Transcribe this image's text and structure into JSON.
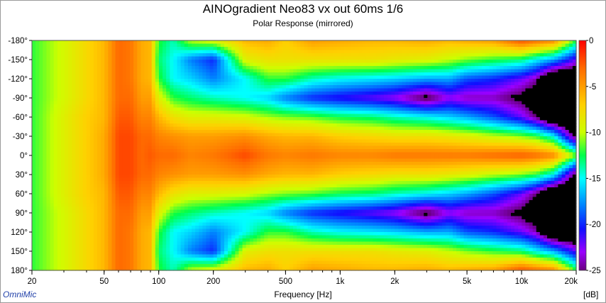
{
  "window": {
    "brand": "OmniMic"
  },
  "chart_data": {
    "type": "heatmap",
    "title": "AINOgradient Neo83 vx out 60ms 1/6",
    "subtitle": "Polar Response (mirrored)",
    "xlabel": "Frequency [Hz]",
    "ylabel": "",
    "x_scale": "log",
    "xlim": [
      20,
      20000
    ],
    "x_ticks": [
      {
        "value": 20,
        "label": "20"
      },
      {
        "value": 50,
        "label": "50"
      },
      {
        "value": 100,
        "label": "100"
      },
      {
        "value": 200,
        "label": "200"
      },
      {
        "value": 500,
        "label": "500"
      },
      {
        "value": 1000,
        "label": "1k"
      },
      {
        "value": 2000,
        "label": "2k"
      },
      {
        "value": 5000,
        "label": "5k"
      },
      {
        "value": 10000,
        "label": "10k"
      },
      {
        "value": 20000,
        "label": "20k"
      }
    ],
    "ylim": [
      -180,
      180
    ],
    "y_ticks": [
      {
        "value": -180,
        "label": "-180°"
      },
      {
        "value": -150,
        "label": "-150°"
      },
      {
        "value": -120,
        "label": "-120°"
      },
      {
        "value": -90,
        "label": "-90°"
      },
      {
        "value": -60,
        "label": "-60°"
      },
      {
        "value": -30,
        "label": "-30°"
      },
      {
        "value": 0,
        "label": "0°"
      },
      {
        "value": 30,
        "label": "30°"
      },
      {
        "value": 60,
        "label": "60°"
      },
      {
        "value": 90,
        "label": "90°"
      },
      {
        "value": 120,
        "label": "120°"
      },
      {
        "value": 150,
        "label": "150°"
      },
      {
        "value": 180,
        "label": "180°"
      }
    ],
    "colorbar": {
      "unit": "[dB]",
      "range": [
        -25,
        0
      ],
      "ticks": [
        {
          "value": 0,
          "label": "0"
        },
        {
          "value": -5,
          "label": "-5"
        },
        {
          "value": -10,
          "label": "-10"
        },
        {
          "value": -15,
          "label": "-15"
        },
        {
          "value": -20,
          "label": "-20"
        },
        {
          "value": -25,
          "label": "-25"
        }
      ],
      "stops": [
        {
          "value": 0,
          "color": "#ff0000"
        },
        {
          "value": -3,
          "color": "#ff6a00"
        },
        {
          "value": -7,
          "color": "#ffd000"
        },
        {
          "value": -10,
          "color": "#ccff00"
        },
        {
          "value": -12.5,
          "color": "#00ff4a"
        },
        {
          "value": -15,
          "color": "#00ffff"
        },
        {
          "value": -18,
          "color": "#0080ff"
        },
        {
          "value": -20.5,
          "color": "#1010ff"
        },
        {
          "value": -23,
          "color": "#9a00ff"
        },
        {
          "value": -25,
          "color": "#6a0080"
        }
      ],
      "below_range_color": "#000000"
    },
    "z_model": {
      "description": "approximate relative level (dB) vs frequency and angle; values for angles in between are interpolated, response is mirrored about 0°",
      "frequencies_hz": [
        20,
        30,
        40,
        50,
        60,
        70,
        80,
        90,
        100,
        120,
        150,
        200,
        300,
        400,
        500,
        700,
        1000,
        1500,
        2000,
        3000,
        4000,
        5000,
        7000,
        10000,
        12000,
        15000,
        20000
      ],
      "angles_deg": [
        0,
        30,
        60,
        90,
        120,
        150,
        180
      ],
      "levels_db": [
        [
          -12,
          -12,
          -12,
          -12,
          -12,
          -12,
          -12
        ],
        [
          -9,
          -9,
          -9,
          -9.5,
          -9.5,
          -9.5,
          -9.5
        ],
        [
          -7,
          -7,
          -7,
          -7.5,
          -7.5,
          -7.5,
          -7.5
        ],
        [
          -5.5,
          -5.5,
          -6,
          -6,
          -6,
          -6,
          -6
        ],
        [
          -2,
          -2,
          -2.5,
          -3,
          -3,
          -3,
          -3
        ],
        [
          -2,
          -2,
          -2.5,
          -3,
          -3.5,
          -3.5,
          -3.5
        ],
        [
          -3,
          -3,
          -4,
          -5,
          -5.5,
          -5.5,
          -5.5
        ],
        [
          -2.5,
          -3,
          -4,
          -5,
          -6,
          -6,
          -6
        ],
        [
          -3,
          -4,
          -6,
          -9,
          -12,
          -13,
          -12
        ],
        [
          -3,
          -4.5,
          -8,
          -12,
          -15,
          -15,
          -14
        ],
        [
          -4,
          -5,
          -9,
          -13,
          -16,
          -18,
          -10
        ],
        [
          -3.5,
          -5,
          -9,
          -14,
          -18,
          -20,
          -9
        ],
        [
          -2,
          -4.5,
          -9.5,
          -15,
          -15,
          -9,
          -6
        ],
        [
          -3.5,
          -5.5,
          -10.5,
          -16,
          -12,
          -8,
          -5.5
        ],
        [
          -4,
          -6,
          -11,
          -18,
          -12,
          -8,
          -7
        ],
        [
          -3.5,
          -6,
          -11.5,
          -20,
          -14,
          -8,
          -5
        ],
        [
          -4,
          -7,
          -12.5,
          -21,
          -15,
          -8,
          -5.5
        ],
        [
          -4,
          -7.5,
          -13,
          -22,
          -15.5,
          -8,
          -6
        ],
        [
          -3.5,
          -8,
          -14,
          -23,
          -16,
          -8.5,
          -6
        ],
        [
          -3.5,
          -8,
          -15,
          -26,
          -17,
          -9,
          -5.5
        ],
        [
          -3.5,
          -8.5,
          -16,
          -23,
          -17,
          -10,
          -6
        ],
        [
          -3.5,
          -9,
          -17,
          -24,
          -19,
          -11,
          -5.5
        ],
        [
          -3,
          -10,
          -19,
          -24,
          -20,
          -12,
          -5
        ],
        [
          -2.5,
          -11,
          -22,
          -26,
          -22,
          -13,
          -2
        ],
        [
          -3,
          -12,
          -25,
          -28,
          -24,
          -15,
          -3
        ],
        [
          -4,
          -15,
          -30,
          -30,
          -30,
          -17,
          -4
        ],
        [
          -11,
          -26,
          -30,
          -30,
          -30,
          -22,
          -12
        ]
      ]
    }
  }
}
